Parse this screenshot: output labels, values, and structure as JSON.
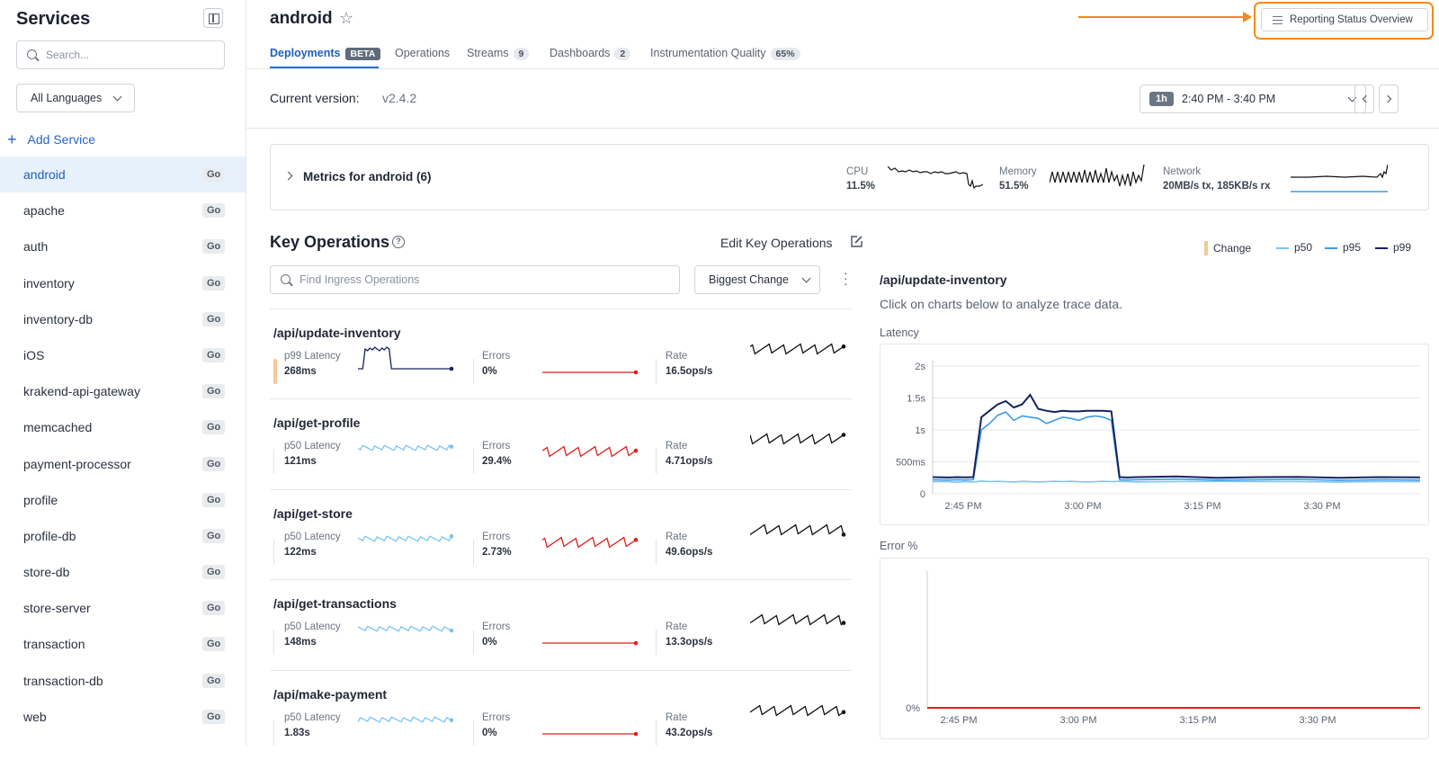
{
  "sidebar": {
    "title": "Services",
    "search_placeholder": "Search...",
    "language_filter": "All Languages",
    "add_service": "Add Service",
    "services": [
      {
        "name": "android",
        "lang": "Go",
        "active": true
      },
      {
        "name": "apache",
        "lang": "Go"
      },
      {
        "name": "auth",
        "lang": "Go"
      },
      {
        "name": "inventory",
        "lang": "Go"
      },
      {
        "name": "inventory-db",
        "lang": "Go"
      },
      {
        "name": "iOS",
        "lang": "Go"
      },
      {
        "name": "krakend-api-gateway",
        "lang": "Go"
      },
      {
        "name": "memcached",
        "lang": "Go"
      },
      {
        "name": "payment-processor",
        "lang": "Go"
      },
      {
        "name": "profile",
        "lang": "Go"
      },
      {
        "name": "profile-db",
        "lang": "Go"
      },
      {
        "name": "store-db",
        "lang": "Go"
      },
      {
        "name": "store-server",
        "lang": "Go"
      },
      {
        "name": "transaction",
        "lang": "Go"
      },
      {
        "name": "transaction-db",
        "lang": "Go"
      },
      {
        "name": "web",
        "lang": "Go"
      }
    ]
  },
  "header": {
    "service_name": "android",
    "reporting_button": "Reporting Status Overview",
    "tabs": [
      {
        "label": "Deployments",
        "badge": "BETA"
      },
      {
        "label": "Operations",
        "badge": ""
      },
      {
        "label": "Streams",
        "badge": "9"
      },
      {
        "label": "Dashboards",
        "badge": "2"
      },
      {
        "label": "Instrumentation Quality",
        "badge": "65%"
      }
    ]
  },
  "version": {
    "label": "Current version:",
    "value": "v2.4.2"
  },
  "time_range": {
    "pill": "1h",
    "range": "2:40 PM - 3:40 PM"
  },
  "metrics": {
    "title": "Metrics for android (6)",
    "cpu": {
      "label": "CPU",
      "value": "11.5%"
    },
    "memory": {
      "label": "Memory",
      "value": "51.5%"
    },
    "network": {
      "label": "Network",
      "value": "20MB/s tx, 185KB/s rx"
    }
  },
  "key_operations": {
    "title": "Key Operations",
    "edit_label": "Edit Key Operations",
    "search_placeholder": "Find Ingress Operations",
    "sort": "Biggest Change",
    "operations": [
      {
        "name": "/api/update-inventory",
        "latency_label": "p99 Latency",
        "latency": "268ms",
        "errors_label": "Errors",
        "errors": "0%",
        "rate_label": "Rate",
        "rate": "16.5ops/s"
      },
      {
        "name": "/api/get-profile",
        "latency_label": "p50 Latency",
        "latency": "121ms",
        "errors_label": "Errors",
        "errors": "29.4%",
        "rate_label": "Rate",
        "rate": "4.71ops/s"
      },
      {
        "name": "/api/get-store",
        "latency_label": "p50 Latency",
        "latency": "122ms",
        "errors_label": "Errors",
        "errors": "2.73%",
        "rate_label": "Rate",
        "rate": "49.6ops/s"
      },
      {
        "name": "/api/get-transactions",
        "latency_label": "p50 Latency",
        "latency": "148ms",
        "errors_label": "Errors",
        "errors": "0%",
        "rate_label": "Rate",
        "rate": "13.3ops/s"
      },
      {
        "name": "/api/make-payment",
        "latency_label": "p50 Latency",
        "latency": "1.83s",
        "errors_label": "Errors",
        "errors": "0%",
        "rate_label": "Rate",
        "rate": "43.2ops/s"
      }
    ]
  },
  "legend": {
    "change": "Change",
    "p50": "p50",
    "p95": "p95",
    "p99": "p99"
  },
  "detail": {
    "operation": "/api/update-inventory",
    "hint": "Click on charts below to analyze trace data.",
    "latency_label": "Latency",
    "error_label": "Error %"
  },
  "colors": {
    "accent": "#1e6fd6",
    "highlight": "#f08a1a",
    "p50": "#7cc4f5",
    "p95": "#3a9be8",
    "p99": "#16235e",
    "error": "#e0201b"
  },
  "chart_data": [
    {
      "type": "line",
      "title": "Latency",
      "x": [
        "2:40 PM",
        "2:42 PM",
        "2:43 PM",
        "2:44 PM",
        "2:45 PM",
        "2:46 PM",
        "2:47 PM",
        "2:48 PM",
        "2:49 PM",
        "2:50 PM",
        "2:51 PM",
        "2:52 PM",
        "2:53 PM",
        "2:54 PM",
        "2:55 PM",
        "2:56 PM",
        "2:57 PM",
        "2:58 PM",
        "2:59 PM",
        "3:00 PM",
        "3:01 PM",
        "3:02 PM",
        "3:03 PM",
        "3:04 PM",
        "3:05 PM",
        "3:10 PM",
        "3:15 PM",
        "3:20 PM",
        "3:25 PM",
        "3:30 PM",
        "3:35 PM",
        "3:40 PM"
      ],
      "x_ticks": [
        "2:45 PM",
        "3:00 PM",
        "3:15 PM",
        "3:30 PM"
      ],
      "y_ticks": [
        "0",
        "500ms",
        "1s",
        "1.5s",
        "2s"
      ],
      "ylim": [
        0,
        2000
      ],
      "series": [
        {
          "name": "p50",
          "values": [
            190,
            190,
            180,
            190,
            185,
            200,
            190,
            195,
            190,
            185,
            195,
            190,
            185,
            190,
            195,
            190,
            195,
            190,
            185,
            190,
            195,
            190,
            195,
            190,
            185,
            190,
            195,
            190,
            190,
            185,
            190,
            190
          ]
        },
        {
          "name": "p95",
          "values": [
            220,
            215,
            220,
            215,
            220,
            1000,
            1100,
            1230,
            1280,
            1150,
            1220,
            1200,
            1180,
            1100,
            1150,
            1200,
            1180,
            1150,
            1200,
            1220,
            1200,
            1150,
            220,
            215,
            220,
            230,
            215,
            220,
            225,
            210,
            220,
            215
          ]
        },
        {
          "name": "p99",
          "values": [
            260,
            255,
            260,
            258,
            260,
            1200,
            1300,
            1400,
            1450,
            1350,
            1400,
            1550,
            1330,
            1300,
            1280,
            1300,
            1290,
            1290,
            1300,
            1300,
            1300,
            1290,
            260,
            255,
            260,
            270,
            250,
            260,
            265,
            250,
            260,
            258
          ]
        }
      ]
    },
    {
      "type": "line",
      "title": "Error %",
      "x_ticks": [
        "2:45 PM",
        "3:00 PM",
        "3:15 PM",
        "3:30 PM"
      ],
      "y_ticks": [
        "0%"
      ],
      "series": [
        {
          "name": "errors",
          "values": [
            0,
            0,
            0,
            0,
            0,
            0,
            0,
            0,
            0,
            0
          ]
        }
      ]
    }
  ]
}
